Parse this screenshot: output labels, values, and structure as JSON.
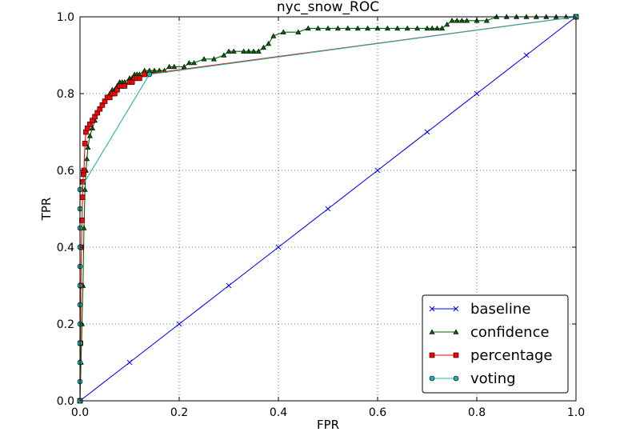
{
  "chart_data": {
    "type": "line",
    "title": "nyc_snow_ROC",
    "xlabel": "FPR",
    "ylabel": "TPR",
    "xlim": [
      0.0,
      1.0
    ],
    "ylim": [
      0.0,
      1.0
    ],
    "xticks": [
      "0.0",
      "0.2",
      "0.4",
      "0.6",
      "0.8",
      "1.0"
    ],
    "yticks": [
      "0.0",
      "0.2",
      "0.4",
      "0.6",
      "0.8",
      "1.0"
    ],
    "grid": true,
    "legend_position": "lower-right",
    "series": [
      {
        "name": "baseline",
        "color": "#0000ff",
        "marker": "x",
        "x": [
          0.0,
          0.1,
          0.2,
          0.3,
          0.4,
          0.5,
          0.6,
          0.7,
          0.8,
          0.9,
          1.0
        ],
        "y": [
          0.0,
          0.1,
          0.2,
          0.3,
          0.4,
          0.5,
          0.6,
          0.7,
          0.8,
          0.9,
          1.0
        ]
      },
      {
        "name": "confidence",
        "color": "#006400",
        "marker": "triangle",
        "x": [
          0.0,
          0.002,
          0.004,
          0.006,
          0.008,
          0.01,
          0.012,
          0.014,
          0.016,
          0.02,
          0.025,
          0.03,
          0.035,
          0.04,
          0.045,
          0.05,
          0.055,
          0.06,
          0.065,
          0.07,
          0.075,
          0.08,
          0.085,
          0.09,
          0.1,
          0.105,
          0.11,
          0.115,
          0.12,
          0.13,
          0.14,
          0.15,
          0.16,
          0.17,
          0.18,
          0.19,
          0.21,
          0.22,
          0.23,
          0.25,
          0.27,
          0.29,
          0.3,
          0.31,
          0.33,
          0.34,
          0.35,
          0.36,
          0.37,
          0.38,
          0.39,
          0.41,
          0.44,
          0.46,
          0.48,
          0.5,
          0.52,
          0.54,
          0.56,
          0.58,
          0.6,
          0.62,
          0.64,
          0.66,
          0.68,
          0.7,
          0.71,
          0.72,
          0.73,
          0.74,
          0.75,
          0.76,
          0.77,
          0.78,
          0.8,
          0.82,
          0.84,
          0.86,
          0.88,
          0.9,
          0.92,
          0.94,
          0.96,
          0.98,
          1.0
        ],
        "y": [
          0.0,
          0.1,
          0.2,
          0.3,
          0.45,
          0.55,
          0.6,
          0.63,
          0.66,
          0.69,
          0.71,
          0.73,
          0.75,
          0.76,
          0.77,
          0.78,
          0.79,
          0.8,
          0.81,
          0.81,
          0.82,
          0.83,
          0.83,
          0.83,
          0.84,
          0.84,
          0.85,
          0.85,
          0.85,
          0.86,
          0.86,
          0.86,
          0.86,
          0.86,
          0.87,
          0.87,
          0.87,
          0.88,
          0.88,
          0.89,
          0.89,
          0.9,
          0.91,
          0.91,
          0.91,
          0.91,
          0.91,
          0.91,
          0.92,
          0.93,
          0.95,
          0.96,
          0.96,
          0.97,
          0.97,
          0.97,
          0.97,
          0.97,
          0.97,
          0.97,
          0.97,
          0.97,
          0.97,
          0.97,
          0.97,
          0.97,
          0.97,
          0.97,
          0.97,
          0.98,
          0.99,
          0.99,
          0.99,
          0.99,
          0.99,
          0.99,
          1.0,
          1.0,
          1.0,
          1.0,
          1.0,
          1.0,
          1.0,
          1.0,
          1.0
        ]
      },
      {
        "name": "percentage",
        "color": "#ff0000",
        "marker": "square",
        "x": [
          0.0,
          0.001,
          0.002,
          0.003,
          0.004,
          0.005,
          0.006,
          0.007,
          0.008,
          0.01,
          0.012,
          0.015,
          0.02,
          0.025,
          0.03,
          0.035,
          0.04,
          0.045,
          0.05,
          0.055,
          0.06,
          0.065,
          0.07,
          0.075,
          0.08,
          0.085,
          0.09,
          0.1,
          0.105,
          0.11,
          0.115,
          0.12,
          0.13,
          1.0
        ],
        "y": [
          0.0,
          0.15,
          0.3,
          0.4,
          0.47,
          0.53,
          0.57,
          0.59,
          0.6,
          0.67,
          0.7,
          0.71,
          0.72,
          0.73,
          0.74,
          0.75,
          0.76,
          0.77,
          0.78,
          0.79,
          0.79,
          0.8,
          0.8,
          0.81,
          0.82,
          0.82,
          0.82,
          0.83,
          0.83,
          0.84,
          0.84,
          0.84,
          0.85,
          1.0
        ]
      },
      {
        "name": "voting",
        "color": "#20b2aa",
        "marker": "circle",
        "x": [
          0.0,
          0.0,
          0.0,
          0.0,
          0.0,
          0.0,
          0.0,
          0.0,
          0.0,
          0.0,
          0.0,
          0.0,
          0.14,
          1.0
        ],
        "y": [
          0.0,
          0.05,
          0.1,
          0.15,
          0.2,
          0.25,
          0.3,
          0.35,
          0.4,
          0.45,
          0.5,
          0.55,
          0.85,
          1.0
        ]
      }
    ]
  }
}
